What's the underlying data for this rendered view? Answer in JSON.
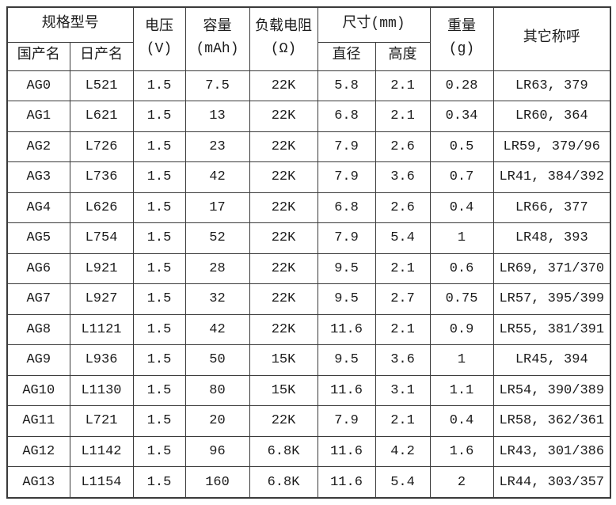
{
  "colors": {
    "background": "#ffffff",
    "border": "#3a3a3a",
    "text": "#1c1c1c"
  },
  "chart_data": {
    "type": "table",
    "header": {
      "spec_model": "规格型号",
      "domestic_name": "国产名",
      "japan_name": "日产名",
      "voltage": "电压",
      "voltage_unit": "(V)",
      "capacity": "容量",
      "capacity_unit": "(mAh)",
      "load_resistance": "负载电阻",
      "load_resistance_unit": "(Ω)",
      "size": "尺寸(mm)",
      "diameter": "直径",
      "height": "高度",
      "weight": "重量",
      "weight_unit": "(g)",
      "other_names": "其它称呼"
    },
    "columns": [
      "国产名",
      "日产名",
      "电压(V)",
      "容量(mAh)",
      "负载电阻(Ω)",
      "直径(mm)",
      "高度(mm)",
      "重量(g)",
      "其它称呼"
    ],
    "rows": [
      [
        "AG0",
        "L521",
        "1.5",
        "7.5",
        "22K",
        "5.8",
        "2.1",
        "0.28",
        "LR63, 379"
      ],
      [
        "AG1",
        "L621",
        "1.5",
        "13",
        "22K",
        "6.8",
        "2.1",
        "0.34",
        "LR60, 364"
      ],
      [
        "AG2",
        "L726",
        "1.5",
        "23",
        "22K",
        "7.9",
        "2.6",
        "0.5",
        "LR59, 379/96"
      ],
      [
        "AG3",
        "L736",
        "1.5",
        "42",
        "22K",
        "7.9",
        "3.6",
        "0.7",
        "LR41, 384/392"
      ],
      [
        "AG4",
        "L626",
        "1.5",
        "17",
        "22K",
        "6.8",
        "2.6",
        "0.4",
        "LR66, 377"
      ],
      [
        "AG5",
        "L754",
        "1.5",
        "52",
        "22K",
        "7.9",
        "5.4",
        "1",
        "LR48, 393"
      ],
      [
        "AG6",
        "L921",
        "1.5",
        "28",
        "22K",
        "9.5",
        "2.1",
        "0.6",
        "LR69, 371/370"
      ],
      [
        "AG7",
        "L927",
        "1.5",
        "32",
        "22K",
        "9.5",
        "2.7",
        "0.75",
        "LR57, 395/399"
      ],
      [
        "AG8",
        "L1121",
        "1.5",
        "42",
        "22K",
        "11.6",
        "2.1",
        "0.9",
        "LR55, 381/391"
      ],
      [
        "AG9",
        "L936",
        "1.5",
        "50",
        "15K",
        "9.5",
        "3.6",
        "1",
        "LR45, 394"
      ],
      [
        "AG10",
        "L1130",
        "1.5",
        "80",
        "15K",
        "11.6",
        "3.1",
        "1.1",
        "LR54, 390/389"
      ],
      [
        "AG11",
        "L721",
        "1.5",
        "20",
        "22K",
        "7.9",
        "2.1",
        "0.4",
        "LR58, 362/361"
      ],
      [
        "AG12",
        "L1142",
        "1.5",
        "96",
        "6.8K",
        "11.6",
        "4.2",
        "1.6",
        "LR43, 301/386"
      ],
      [
        "AG13",
        "L1154",
        "1.5",
        "160",
        "6.8K",
        "11.6",
        "5.4",
        "2",
        "LR44, 303/357"
      ]
    ]
  }
}
